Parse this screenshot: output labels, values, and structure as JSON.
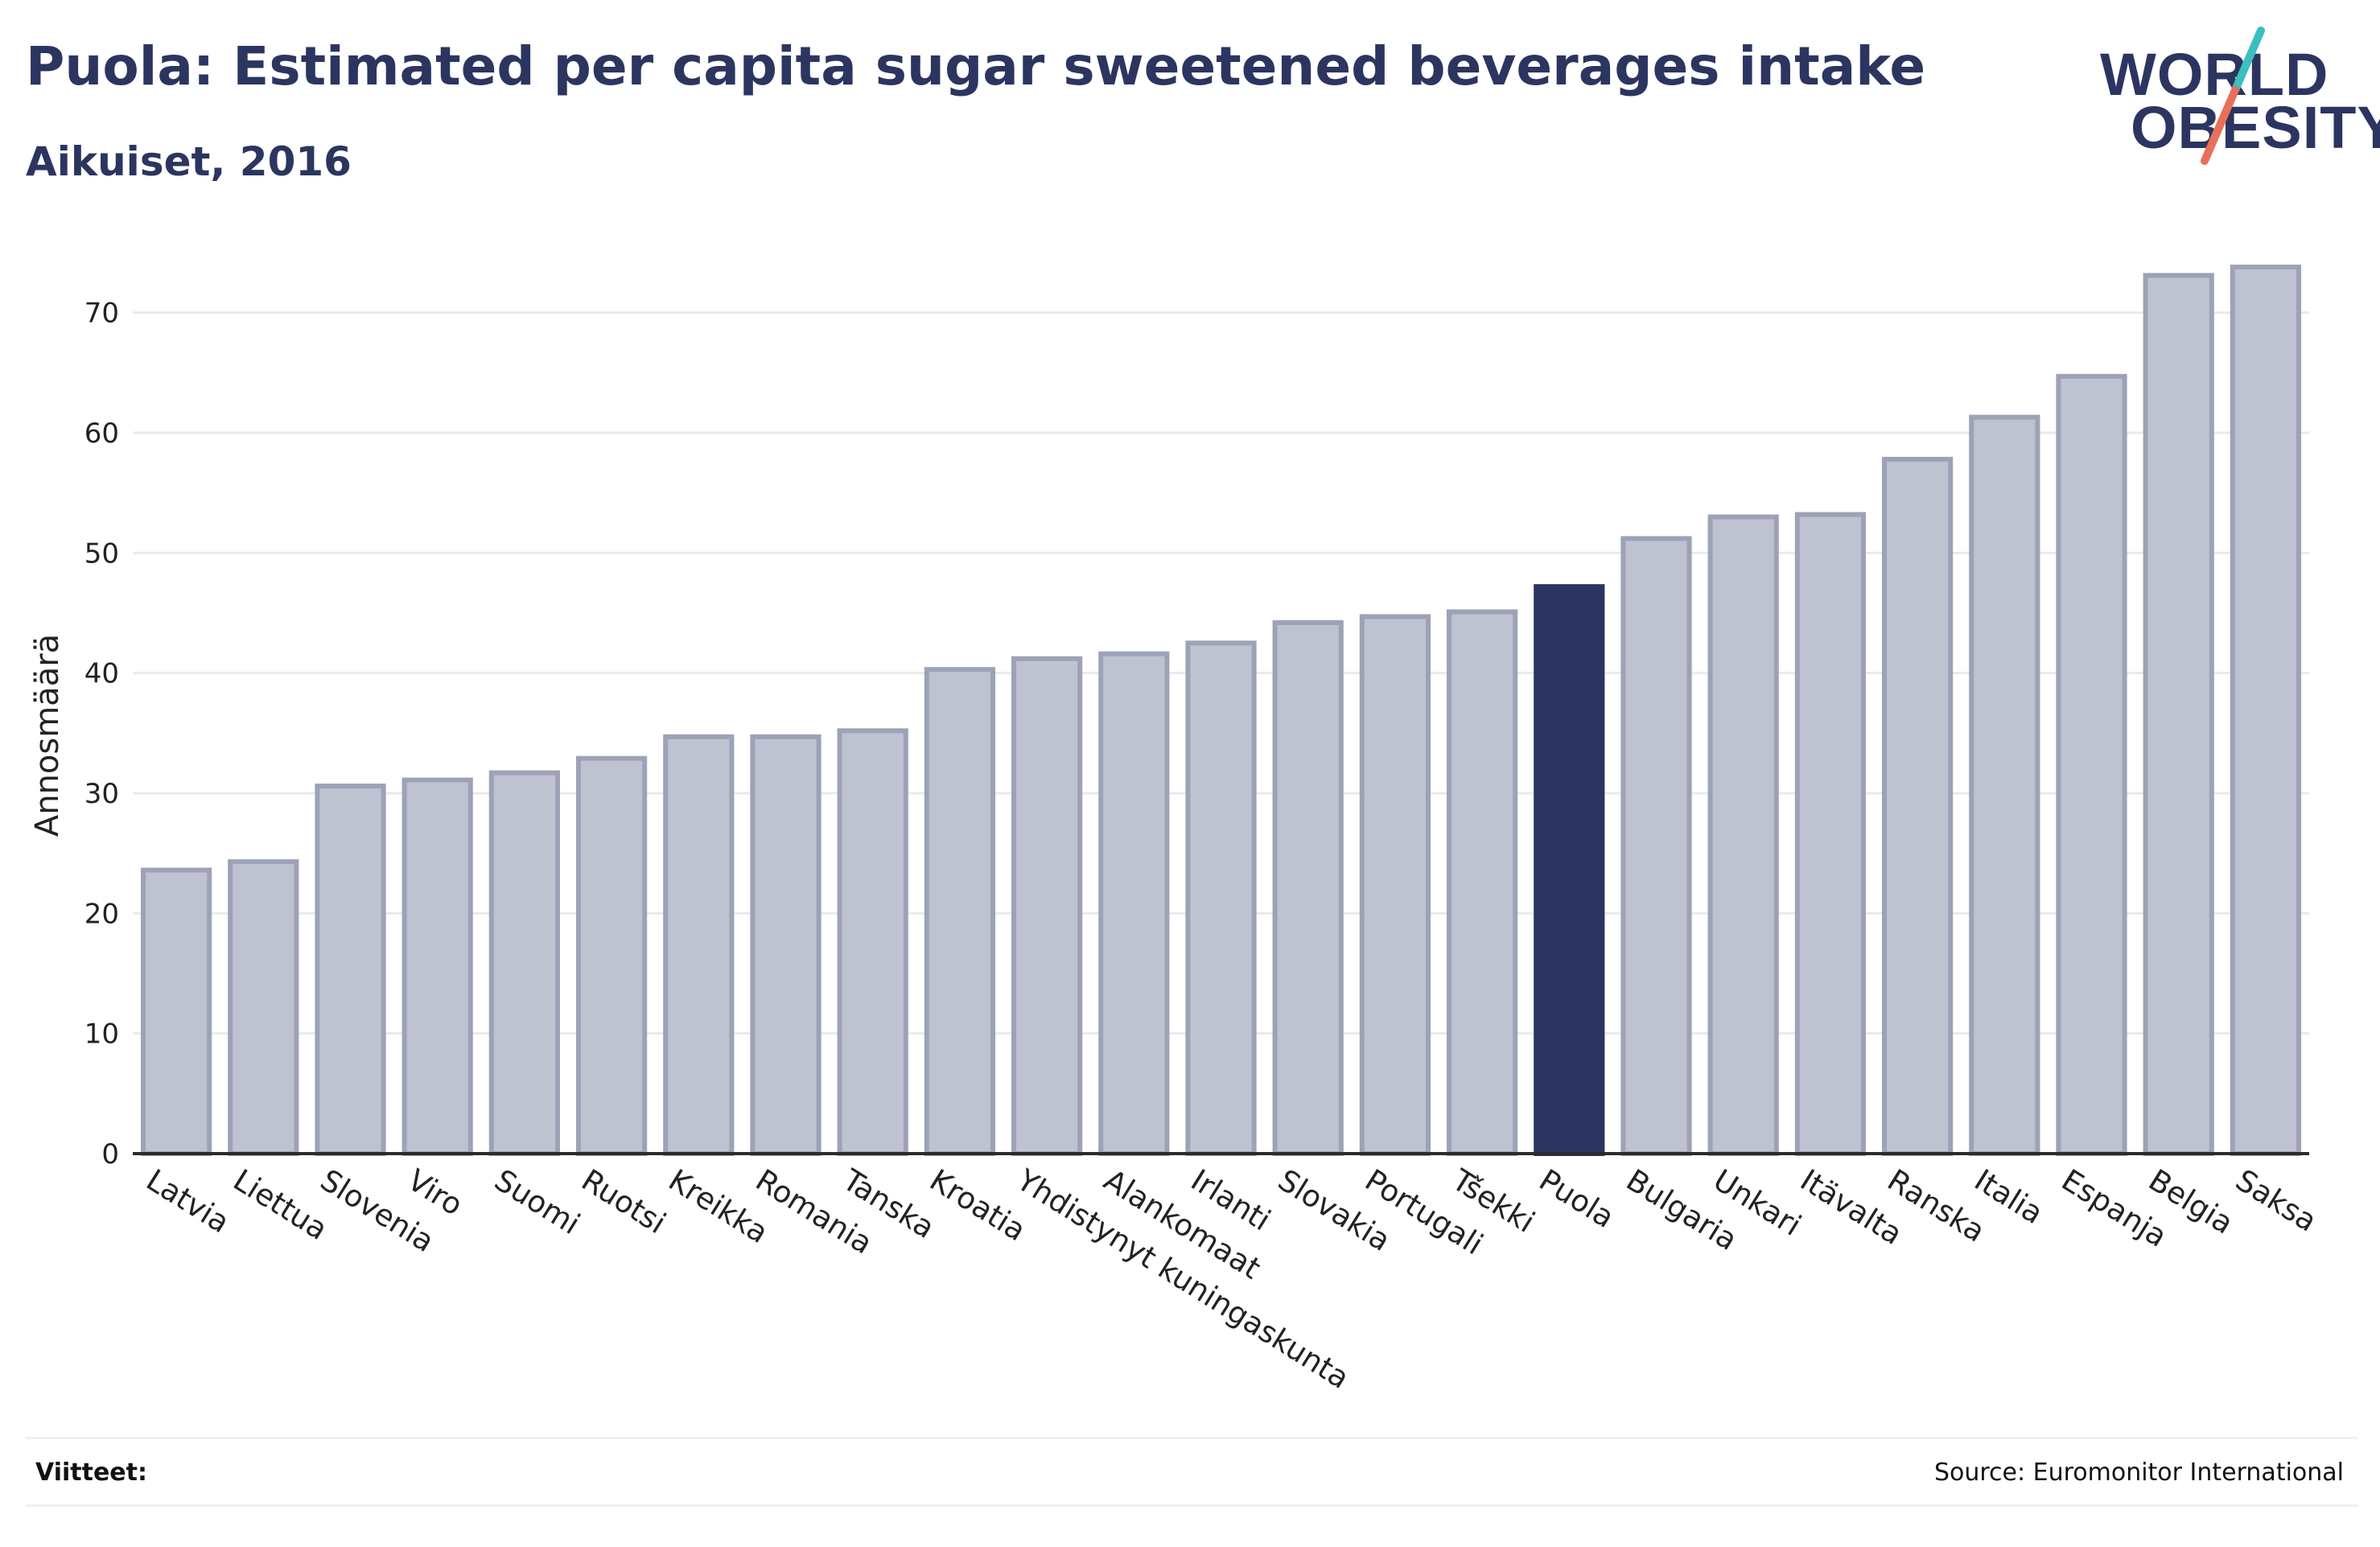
{
  "header": {
    "title": "Puola: Estimated per capita sugar sweetened beverages intake",
    "subtitle": "Aikuiset, 2016"
  },
  "logo": {
    "line1": "WORLD",
    "line2": "OBESITY",
    "slash_colors": [
      "#3bbfbf",
      "#e8705a"
    ]
  },
  "footer": {
    "refs_label": "Viitteet:",
    "source": "Source: Euromonitor International"
  },
  "colors": {
    "bar": "#bfc2d0",
    "bar_border": "#9da2b7",
    "highlight": "#2b3560",
    "grid": "#e8eaee",
    "axis": "#2b2b2b",
    "text": "#222222"
  },
  "chart_data": {
    "type": "bar",
    "ylabel": "Annosmäärä",
    "xlabel": "",
    "ylim": [
      0,
      75
    ],
    "yticks": [
      0,
      10,
      20,
      30,
      40,
      50,
      60,
      70
    ],
    "grid": true,
    "highlight": "Puola",
    "categories": [
      "Latvia",
      "Liettua",
      "Slovenia",
      "Viro",
      "Suomi",
      "Ruotsi",
      "Kreikka",
      "Romania",
      "Tanska",
      "Kroatia",
      "Yhdistynyt kuningaskunta",
      "Alankomaat",
      "Irlanti",
      "Slovakia",
      "Portugali",
      "Tšekki",
      "Puola",
      "Bulgaria",
      "Unkari",
      "Itävalta",
      "Ranska",
      "Italia",
      "Espanja",
      "Belgia",
      "Saksa"
    ],
    "values": [
      23.6,
      24.3,
      30.6,
      31.1,
      31.7,
      32.9,
      34.7,
      34.7,
      35.2,
      40.3,
      41.2,
      41.6,
      42.5,
      44.2,
      44.7,
      45.1,
      47.2,
      51.2,
      53.0,
      53.2,
      57.8,
      61.3,
      64.7,
      73.1,
      73.8
    ]
  }
}
